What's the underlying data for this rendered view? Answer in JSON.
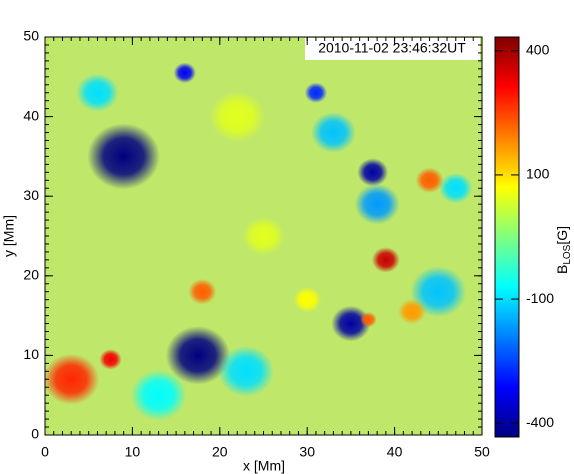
{
  "chart_data": {
    "type": "heatmap",
    "timestamp": "2010-11-02 23:46:32UT",
    "xlabel": "x [Mm]",
    "ylabel": "y [Mm]",
    "colorbar_label": {
      "base": "B",
      "subscript": "LOS",
      "unit": "[G]"
    },
    "xlim": [
      0,
      50
    ],
    "ylim": [
      0,
      50
    ],
    "xticks": [
      0,
      10,
      20,
      30,
      40,
      50
    ],
    "yticks": [
      0,
      10,
      20,
      30,
      40,
      50
    ],
    "minor_tick_step": 1,
    "background_color": "#bfe86a",
    "colormap": "jet",
    "color_scale": "asinh",
    "clim": [
      -450,
      450
    ],
    "cticks": [
      -400,
      -100,
      100,
      400
    ],
    "features": [
      {
        "x": 9,
        "y": 35,
        "value": -450,
        "size": 2.6
      },
      {
        "x": 17.5,
        "y": 10,
        "value": -450,
        "size": 2.3
      },
      {
        "x": 37.5,
        "y": 33,
        "value": -400,
        "size": 1.1
      },
      {
        "x": 35,
        "y": 14,
        "value": -400,
        "size": 1.4
      },
      {
        "x": 16,
        "y": 45.5,
        "value": -300,
        "size": 0.8
      },
      {
        "x": 31,
        "y": 43,
        "value": -250,
        "size": 0.8
      },
      {
        "x": 38,
        "y": 29,
        "value": -150,
        "size": 1.6
      },
      {
        "x": 45,
        "y": 18,
        "value": -120,
        "size": 2
      },
      {
        "x": 6,
        "y": 43,
        "value": -100,
        "size": 1.5
      },
      {
        "x": 33,
        "y": 38,
        "value": -120,
        "size": 1.6
      },
      {
        "x": 23,
        "y": 8,
        "value": -100,
        "size": 2
      },
      {
        "x": 47,
        "y": 31,
        "value": -100,
        "size": 1.2
      },
      {
        "x": 13,
        "y": 5,
        "value": -80,
        "size": 2
      },
      {
        "x": 39,
        "y": 22,
        "value": 350,
        "size": 1
      },
      {
        "x": 3,
        "y": 7,
        "value": 250,
        "size": 2
      },
      {
        "x": 7.5,
        "y": 9.5,
        "value": 300,
        "size": 0.8
      },
      {
        "x": 44,
        "y": 32,
        "value": 200,
        "size": 1
      },
      {
        "x": 18,
        "y": 18,
        "value": 200,
        "size": 1
      },
      {
        "x": 42,
        "y": 15.5,
        "value": 150,
        "size": 1
      },
      {
        "x": 37,
        "y": 14.5,
        "value": 200,
        "size": 0.6
      },
      {
        "x": 25,
        "y": 25,
        "value": 60,
        "size": 1.5
      },
      {
        "x": 30,
        "y": 17,
        "value": 80,
        "size": 1
      },
      {
        "x": 22,
        "y": 40,
        "value": 60,
        "size": 2
      }
    ]
  }
}
